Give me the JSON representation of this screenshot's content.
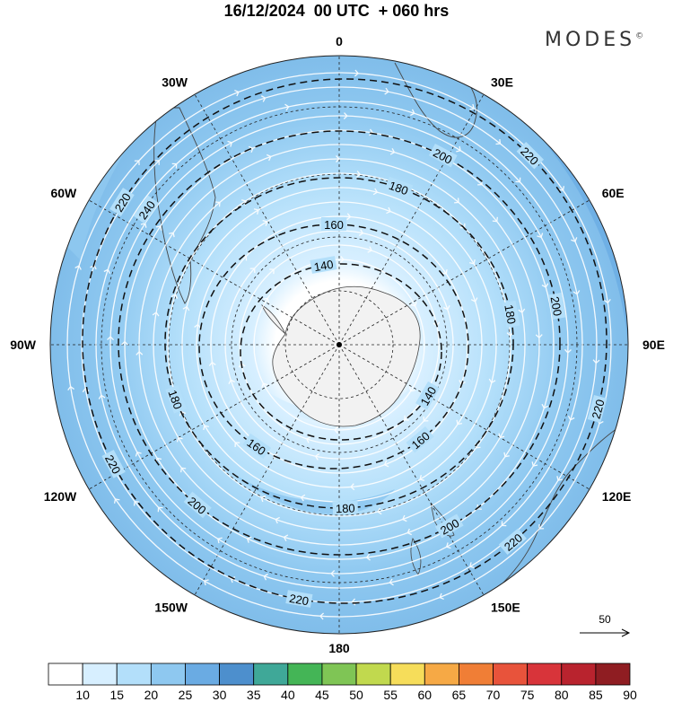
{
  "title": "16/12/2024  00 UTC  + 060 hrs",
  "brand": "MODES",
  "brand_mark": "©",
  "map": {
    "projection": "south-polar-stereographic",
    "longitude_labels": [
      {
        "text": "0",
        "lon": 0
      },
      {
        "text": "30E",
        "lon": 30
      },
      {
        "text": "60E",
        "lon": 60
      },
      {
        "text": "90E",
        "lon": 90
      },
      {
        "text": "120E",
        "lon": 120
      },
      {
        "text": "150E",
        "lon": 150
      },
      {
        "text": "180",
        "lon": 180
      },
      {
        "text": "150W",
        "lon": -150
      },
      {
        "text": "120W",
        "lon": -120
      },
      {
        "text": "90W",
        "lon": -90
      },
      {
        "text": "60W",
        "lon": -60
      },
      {
        "text": "30W",
        "lon": -30
      }
    ],
    "contour_labels": [
      {
        "text": "140",
        "lon": -10,
        "level": 140
      },
      {
        "text": "140",
        "lon": 120,
        "level": 140
      },
      {
        "text": "160",
        "lon": 0,
        "level": 160
      },
      {
        "text": "160",
        "lon": 140,
        "level": 160
      },
      {
        "text": "160",
        "lon": -145,
        "level": 160
      },
      {
        "text": "180",
        "lon": 20,
        "level": 180
      },
      {
        "text": "180",
        "lon": 80,
        "level": 180
      },
      {
        "text": "180",
        "lon": -110,
        "level": 180
      },
      {
        "text": "180",
        "lon": 178,
        "level": 180
      },
      {
        "text": "200",
        "lon": 28,
        "level": 200
      },
      {
        "text": "200",
        "lon": 80,
        "level": 200
      },
      {
        "text": "200",
        "lon": 150,
        "level": 200
      },
      {
        "text": "200",
        "lon": -140,
        "level": 200
      },
      {
        "text": "240",
        "lon": -55,
        "level": 240
      },
      {
        "text": "220",
        "lon": 45,
        "level": 220
      },
      {
        "text": "220",
        "lon": 105,
        "level": 220
      },
      {
        "text": "220",
        "lon": 140,
        "level": 220
      },
      {
        "text": "220",
        "lon": -170,
        "level": 220
      },
      {
        "text": "220",
        "lon": -118,
        "level": 220
      },
      {
        "text": "220",
        "lon": -58,
        "level": 220
      }
    ],
    "reference_vector": {
      "label": "50"
    }
  },
  "colorbar": {
    "labels": [
      "10",
      "15",
      "20",
      "25",
      "30",
      "35",
      "40",
      "45",
      "50",
      "55",
      "60",
      "65",
      "70",
      "75",
      "80",
      "85",
      "90"
    ],
    "colors": [
      "#ffffff",
      "#d7efff",
      "#b3dffa",
      "#8ec8f0",
      "#6aabe3",
      "#4d8fcd",
      "#3fa898",
      "#44b556",
      "#7fc555",
      "#c1d94e",
      "#f6dd5a",
      "#f6a945",
      "#f07e36",
      "#e8533b",
      "#d8343a",
      "#b9232e",
      "#8f1d22"
    ]
  }
}
